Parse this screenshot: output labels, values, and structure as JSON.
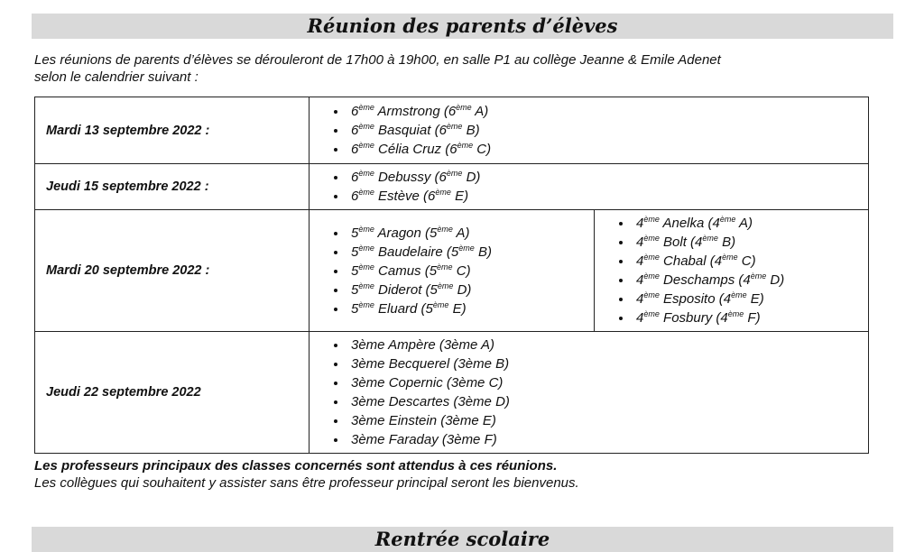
{
  "header": {
    "title": "Réunion des parents d’élèves"
  },
  "intro": [
    "Les réunions de parents d’élèves se dérouleront de 17h00 à 19h00, en salle P1 au collège Jeanne & Emile Adenet",
    "selon le calendrier suivant :"
  ],
  "schedule": [
    {
      "date": "Mardi 13 septembre 2022 :",
      "columns": [
        [
          [
            "6",
            "ème",
            " Armstrong (6",
            "ème",
            " A)"
          ],
          [
            "6",
            "ème",
            " Basquiat (6",
            "ème",
            " B)"
          ],
          [
            "6",
            "ème",
            " Célia Cruz (6",
            "ème",
            " C)"
          ]
        ]
      ]
    },
    {
      "date": "Jeudi 15 septembre 2022 :",
      "columns": [
        [
          [
            "6",
            "ème",
            " Debussy (6",
            "ème",
            " D)"
          ],
          [
            "6",
            "ème",
            " Estève (6",
            "ème",
            " E)"
          ]
        ]
      ]
    },
    {
      "date": "Mardi 20 septembre 2022 :",
      "columns": [
        [
          [
            "5",
            "ème",
            " Aragon (5",
            "ème",
            " A)"
          ],
          [
            "5",
            "ème",
            " Baudelaire (5",
            "ème",
            " B)"
          ],
          [
            "5",
            "ème",
            " Camus (5",
            "ème",
            " C)"
          ],
          [
            "5",
            "ème",
            " Diderot (5",
            "ème",
            " D)"
          ],
          [
            "5",
            "ème",
            " Eluard (5",
            "ème",
            " E)"
          ]
        ],
        [
          [
            "4",
            "ème",
            " Anelka (4",
            "ème",
            " A)"
          ],
          [
            "4",
            "ème",
            " Bolt (4",
            "ème",
            " B)"
          ],
          [
            "4",
            "ème",
            " Chabal (4",
            "ème",
            " C)"
          ],
          [
            "4",
            "ème",
            " Deschamps (4",
            "ème",
            " D)"
          ],
          [
            "4",
            "ème",
            " Esposito (4",
            "ème",
            " E)"
          ],
          [
            "4",
            "ème",
            " Fosbury (4",
            "ème",
            " F)"
          ]
        ]
      ]
    },
    {
      "date": "Jeudi 22 septembre 2022",
      "columns": [
        [
          [
            "3ème Ampère (3ème A)"
          ],
          [
            "3ème Becquerel (3ème B)"
          ],
          [
            "3ème Copernic (3ème C)"
          ],
          [
            "3ème Descartes (3ème D)"
          ],
          [
            "3ème Einstein (3ème E)"
          ],
          [
            "3ème Faraday (3ème F)"
          ]
        ]
      ]
    }
  ],
  "notes": {
    "bold": "Les professeurs principaux des classes concernés sont attendus à ces réunions.",
    "plain": "Les collègues qui souhaitent y assister sans être professeur principal seront les bienvenus."
  },
  "next_section": {
    "title": "Rentrée scolaire"
  }
}
